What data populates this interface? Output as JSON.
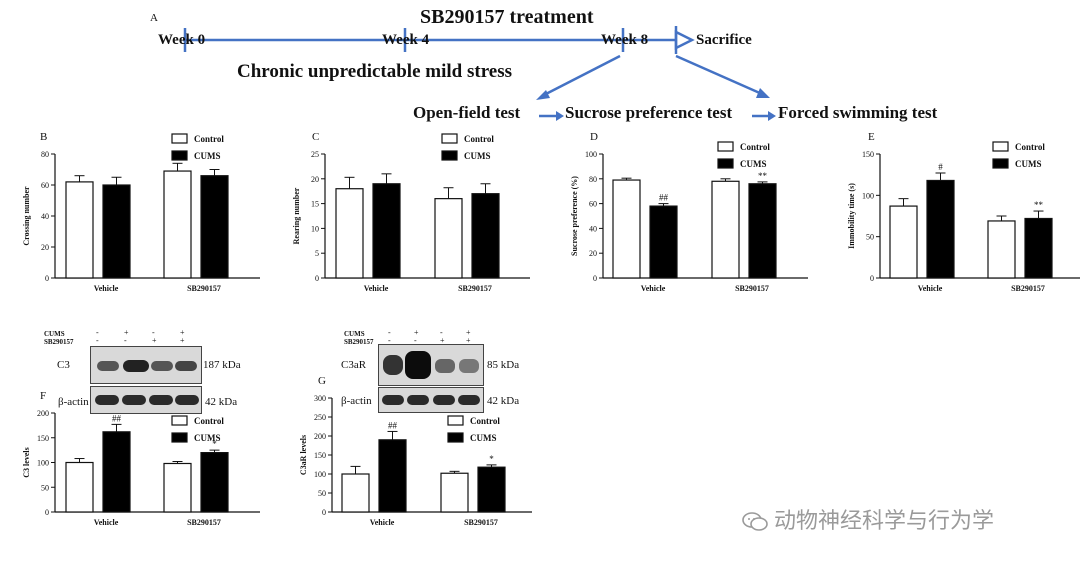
{
  "panel_a": {
    "letter": "A",
    "treatment_label": "SB290157 treatment",
    "weeks": [
      "Week 0",
      "Week 4",
      "Week 8"
    ],
    "sacrifice": "Sacrifice",
    "stress_label": "Chronic unpredictable mild stress",
    "tests": [
      "Open-field test",
      "Sucrose preference test",
      "Forced swimming test"
    ]
  },
  "legend": {
    "control": "Control",
    "cums": "CUMS"
  },
  "chart_data": [
    {
      "panel": "B",
      "type": "bar",
      "categories": [
        "Vehicle",
        "SB290157"
      ],
      "ylabel": "Crossing number",
      "ylim": [
        0,
        80
      ],
      "yticks": [
        0,
        20,
        40,
        60,
        80
      ],
      "series": [
        {
          "name": "Control",
          "values": [
            62,
            69
          ],
          "errors": [
            4,
            5
          ],
          "marks": [
            "",
            ""
          ]
        },
        {
          "name": "CUMS",
          "values": [
            60,
            66
          ],
          "errors": [
            5,
            4
          ],
          "marks": [
            "",
            ""
          ]
        }
      ]
    },
    {
      "panel": "C",
      "type": "bar",
      "categories": [
        "Vehicle",
        "SB290157"
      ],
      "ylabel": "Rearing number",
      "ylim": [
        0,
        25
      ],
      "yticks": [
        0,
        5,
        10,
        15,
        20,
        25
      ],
      "series": [
        {
          "name": "Control",
          "values": [
            18,
            16
          ],
          "errors": [
            2.3,
            2.2
          ],
          "marks": [
            "",
            ""
          ]
        },
        {
          "name": "CUMS",
          "values": [
            19,
            17
          ],
          "errors": [
            2,
            2
          ],
          "marks": [
            "",
            ""
          ]
        }
      ]
    },
    {
      "panel": "D",
      "type": "bar",
      "categories": [
        "Vehicle",
        "SB290157"
      ],
      "ylabel": "Sucrose preference (%)",
      "ylim": [
        0,
        100
      ],
      "yticks": [
        0,
        20,
        40,
        60,
        80,
        100
      ],
      "series": [
        {
          "name": "Control",
          "values": [
            79,
            78
          ],
          "errors": [
            1.5,
            2
          ],
          "marks": [
            "",
            ""
          ]
        },
        {
          "name": "CUMS",
          "values": [
            58,
            76
          ],
          "errors": [
            2,
            1.5
          ],
          "marks": [
            "##",
            "**"
          ]
        }
      ]
    },
    {
      "panel": "E",
      "type": "bar",
      "categories": [
        "Vehicle",
        "SB290157"
      ],
      "ylabel": "Immobility time (s)",
      "ylim": [
        0,
        150
      ],
      "yticks": [
        0,
        50,
        100,
        150
      ],
      "series": [
        {
          "name": "Control",
          "values": [
            87,
            69
          ],
          "errors": [
            9,
            6
          ],
          "marks": [
            "",
            ""
          ]
        },
        {
          "name": "CUMS",
          "values": [
            118,
            72
          ],
          "errors": [
            9,
            9
          ],
          "marks": [
            "#",
            "**"
          ]
        }
      ]
    },
    {
      "panel": "F",
      "type": "bar",
      "categories": [
        "Vehicle",
        "SB290157"
      ],
      "ylabel": "C3 levels",
      "ylim": [
        0,
        200
      ],
      "yticks": [
        0,
        50,
        100,
        150,
        200
      ],
      "series": [
        {
          "name": "Control",
          "values": [
            100,
            98
          ],
          "errors": [
            8,
            4
          ],
          "marks": [
            "",
            ""
          ]
        },
        {
          "name": "CUMS",
          "values": [
            162,
            120
          ],
          "errors": [
            15,
            5
          ],
          "marks": [
            "##",
            "*"
          ]
        }
      ]
    },
    {
      "panel": "G",
      "type": "bar",
      "categories": [
        "Vehicle",
        "SB290157"
      ],
      "ylabel": "C3aR levels",
      "ylim": [
        0,
        300
      ],
      "yticks": [
        0,
        50,
        100,
        150,
        200,
        250,
        300
      ],
      "series": [
        {
          "name": "Control",
          "values": [
            100,
            102
          ],
          "errors": [
            20,
            5
          ],
          "marks": [
            "",
            ""
          ]
        },
        {
          "name": "CUMS",
          "values": [
            190,
            118
          ],
          "errors": [
            22,
            6
          ],
          "marks": [
            "##",
            "*"
          ]
        }
      ]
    }
  ],
  "blots": {
    "f": {
      "row_labels": [
        "CUMS",
        "SB290157"
      ],
      "cums_signs": [
        "-",
        "+",
        "-",
        "+"
      ],
      "sb_signs": [
        "-",
        "-",
        "+",
        "+"
      ],
      "target": "C3",
      "target_kda": "187 kDa",
      "loading": "β-actin",
      "loading_kda": "42 kDa"
    },
    "g": {
      "row_labels": [
        "CUMS",
        "SB290157"
      ],
      "cums_signs": [
        "-",
        "+",
        "-",
        "+"
      ],
      "sb_signs": [
        "-",
        "-",
        "+",
        "+"
      ],
      "target": "C3aR",
      "target_kda": "85 kDa",
      "loading": "β-actin",
      "loading_kda": "42 kDa"
    }
  },
  "watermark": "动物神经科学与行为学",
  "colors": {
    "arrow": "#4472c4",
    "bar_dark": "#000000",
    "bar_light": "#ffffff"
  }
}
